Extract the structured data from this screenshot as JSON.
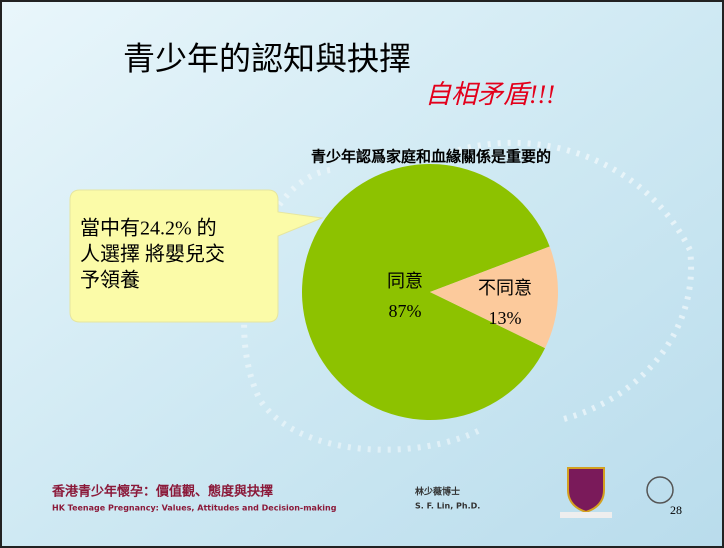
{
  "slide": {
    "title": "青少年的認知與抉擇",
    "subtitle": "自相矛盾!!!",
    "callout": [
      "當中有24.2% 的",
      "人選擇 將嬰兒交",
      "予領養"
    ],
    "footer": {
      "project_zh": "香港青少年懷孕：價值觀、態度與抉擇",
      "project_en": "HK Teenage Pregnancy: Values, Attitudes and Decision-making",
      "author_zh": "林少薇博士",
      "author_en": "S. F. Lin, Ph.D.",
      "page": "28"
    }
  },
  "chart_data": {
    "type": "pie",
    "title": "青少年認爲家庭和血緣關係是重要的",
    "categories": [
      "同意",
      "不同意"
    ],
    "values": [
      87,
      13
    ],
    "value_labels": [
      "87%",
      "13%"
    ],
    "colors": [
      "#8dc200",
      "#fcca9c"
    ]
  }
}
